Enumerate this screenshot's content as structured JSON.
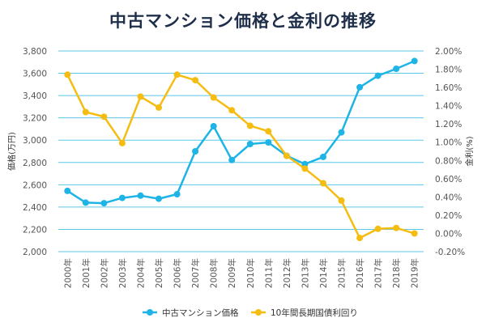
{
  "chart_data": {
    "type": "line",
    "title": "中古マンション価格と金利の推移",
    "categories": [
      "2000年",
      "2001年",
      "2002年",
      "2003年",
      "2004年",
      "2005年",
      "2006年",
      "2007年",
      "2008年",
      "2009年",
      "2010年",
      "2011年",
      "2012年",
      "2013年",
      "2014年",
      "2015年",
      "2016年",
      "2017年",
      "2018年",
      "2019年"
    ],
    "y_left": {
      "label": "価格(万円)",
      "range": [
        2000,
        3800
      ],
      "ticks": [
        2000,
        2200,
        2400,
        2600,
        2800,
        3000,
        3200,
        3400,
        3600,
        3800
      ],
      "tick_labels": [
        "2,000",
        "2,200",
        "2,400",
        "2,600",
        "2,800",
        "3,000",
        "3,200",
        "3,400",
        "3,600",
        "3,800"
      ]
    },
    "y_right": {
      "label": "金利(%)",
      "range": [
        -0.2,
        2.0
      ],
      "ticks": [
        -0.2,
        0.0,
        0.2,
        0.4,
        0.6,
        0.8,
        1.0,
        1.2,
        1.4,
        1.6,
        1.8,
        2.0
      ],
      "tick_labels": [
        "-0.20%",
        "0.00%",
        "0.20%",
        "0.40%",
        "0.60%",
        "0.80%",
        "1.00%",
        "1.20%",
        "1.40%",
        "1.60%",
        "1.80%",
        "2.00%"
      ]
    },
    "series": [
      {
        "name": "中古マンション価格",
        "axis": "left",
        "color": "#1eb4e6",
        "values": [
          2545,
          2440,
          2435,
          2482,
          2502,
          2475,
          2515,
          2900,
          3125,
          2822,
          2965,
          2980,
          2860,
          2785,
          2850,
          3070,
          3475,
          3578,
          3640,
          3710
        ]
      },
      {
        "name": "10年間長期国債利回り",
        "axis": "right",
        "color": "#f5bc12",
        "values": [
          1.74,
          1.33,
          1.28,
          0.99,
          1.5,
          1.38,
          1.74,
          1.68,
          1.49,
          1.35,
          1.18,
          1.12,
          0.85,
          0.71,
          0.55,
          0.36,
          -0.05,
          0.05,
          0.06,
          0.0
        ]
      }
    ],
    "grid": "horizontal",
    "legend_position": "bottom"
  }
}
